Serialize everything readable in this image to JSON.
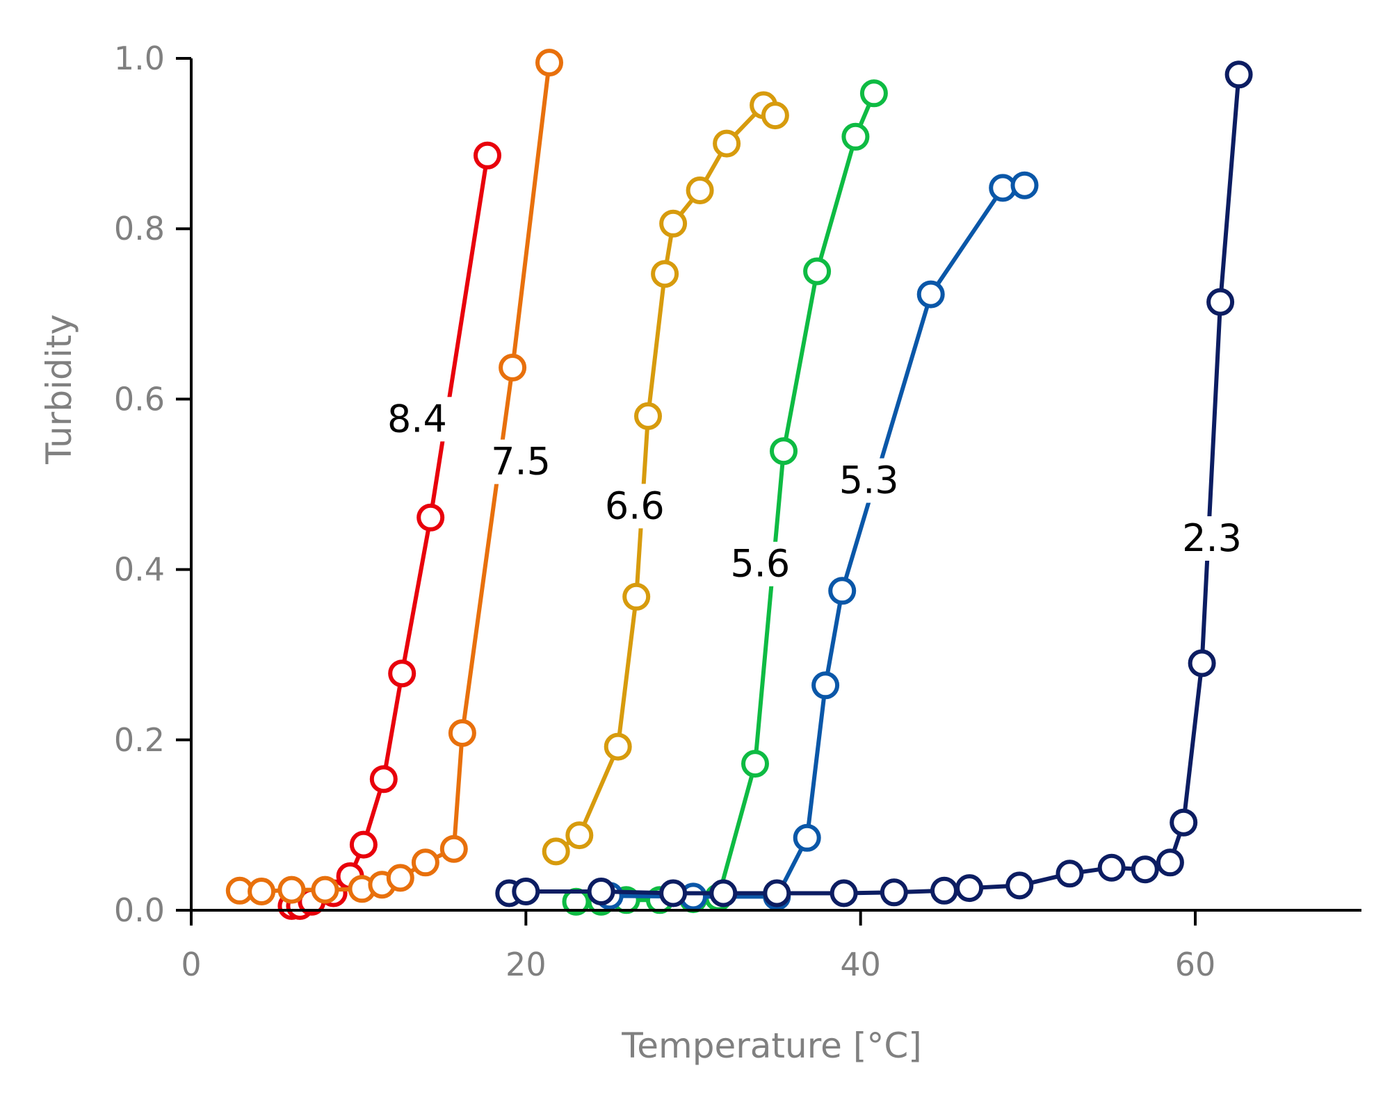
{
  "chart_data": {
    "type": "line",
    "title": "",
    "xlabel": "Temperature [°C]",
    "ylabel": "Turbidity",
    "xlim": [
      0,
      70
    ],
    "ylim": [
      0,
      1.0
    ],
    "x_ticks": [
      0,
      20,
      40,
      60
    ],
    "x_tick_labels": [
      "0",
      "20",
      "40",
      "60"
    ],
    "y_ticks": [
      0,
      0.2,
      0.4,
      0.6,
      0.8,
      1.0
    ],
    "y_tick_labels": [
      "0.0",
      "0.2",
      "0.4",
      "0.6",
      "0.8",
      "1.0"
    ],
    "grid": false,
    "legend": "none",
    "series": [
      {
        "name": "8.4",
        "label": "8.4",
        "color": "#e8000b",
        "label_pos": [
          13.5,
          0.565
        ],
        "x": [
          6.0,
          6.5,
          7.2,
          8.5,
          9.5,
          10.3,
          11.5,
          12.6,
          14.3,
          17.7
        ],
        "y": [
          0.005,
          0.005,
          0.01,
          0.02,
          0.04,
          0.077,
          0.154,
          0.278,
          0.461,
          0.886
        ]
      },
      {
        "name": "7.5",
        "label": "7.5",
        "color": "#e8700c",
        "label_pos": [
          19.7,
          0.515
        ],
        "x": [
          2.9,
          4.2,
          6.0,
          8.0,
          10.2,
          11.4,
          12.5,
          14.0,
          15.7,
          16.2,
          19.2,
          21.4
        ],
        "y": [
          0.023,
          0.022,
          0.024,
          0.024,
          0.025,
          0.03,
          0.038,
          0.056,
          0.072,
          0.208,
          0.637,
          0.995
        ]
      },
      {
        "name": "6.6",
        "label": "6.6",
        "color": "#d79b0d",
        "label_pos": [
          26.5,
          0.463
        ],
        "x": [
          21.8,
          23.2,
          25.5,
          26.6,
          27.3,
          28.3,
          28.8,
          30.4,
          32.0,
          34.2,
          34.9
        ],
        "y": [
          0.069,
          0.088,
          0.192,
          0.368,
          0.58,
          0.747,
          0.806,
          0.845,
          0.9,
          0.945,
          0.933
        ]
      },
      {
        "name": "5.6",
        "label": "5.6",
        "color": "#0ebb43",
        "label_pos": [
          34.0,
          0.395
        ],
        "x": [
          23.0,
          24.5,
          26.0,
          28.0,
          30.0,
          31.5,
          33.7,
          35.4,
          37.4,
          39.7,
          40.8
        ],
        "y": [
          0.01,
          0.01,
          0.012,
          0.012,
          0.013,
          0.015,
          0.172,
          0.539,
          0.75,
          0.908,
          0.959
        ]
      },
      {
        "name": "5.3",
        "label": "5.3",
        "color": "#0a57a8",
        "label_pos": [
          40.5,
          0.493
        ],
        "x": [
          25.0,
          30.0,
          35.0,
          36.8,
          37.9,
          38.9,
          44.2,
          48.5,
          49.8
        ],
        "y": [
          0.017,
          0.016,
          0.016,
          0.085,
          0.264,
          0.375,
          0.723,
          0.848,
          0.851
        ]
      },
      {
        "name": "2.3",
        "label": "2.3",
        "color": "#0c1d62",
        "label_pos": [
          61.0,
          0.425
        ],
        "x": [
          19.0,
          20.0,
          24.5,
          28.8,
          31.8,
          35.0,
          39.0,
          42.0,
          45.0,
          46.5,
          49.5,
          52.5,
          55.0,
          57.0,
          58.5,
          59.3,
          60.4,
          61.5,
          62.6
        ],
        "y": [
          0.02,
          0.022,
          0.022,
          0.02,
          0.02,
          0.02,
          0.02,
          0.021,
          0.023,
          0.026,
          0.029,
          0.043,
          0.05,
          0.048,
          0.056,
          0.103,
          0.29,
          0.714,
          0.981
        ]
      }
    ]
  }
}
